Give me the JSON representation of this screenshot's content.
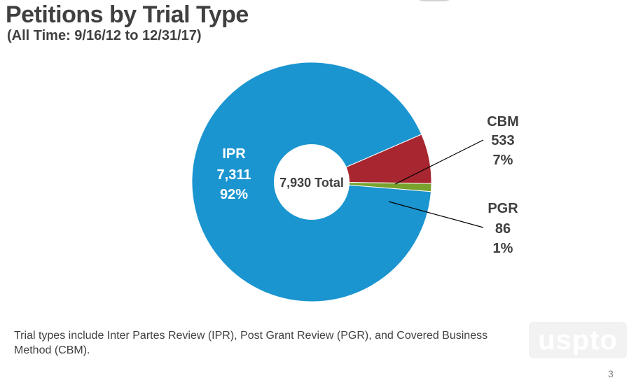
{
  "slide": {
    "title": "Petitions by Trial Type",
    "subtitle": "(All Time: 9/16/12 to 12/31/17)",
    "footnote": "Trial types include Inter Partes Review (IPR), Post Grant Review (PGR), and Covered Business Method (CBM).",
    "logo_text": "uspto",
    "page_number": "3"
  },
  "chart_data": {
    "type": "pie",
    "variant": "donut",
    "center_label": "7,930 Total",
    "total": 7930,
    "slices": [
      {
        "label": "IPR",
        "value": 7311,
        "value_label": "7,311",
        "percent_label": "92%",
        "color": "#1b95d0"
      },
      {
        "label": "CBM",
        "value": 533,
        "value_label": "533",
        "percent_label": "7%",
        "color": "#a8262f"
      },
      {
        "label": "PGR",
        "value": 86,
        "value_label": "86",
        "percent_label": "1%",
        "color": "#77a22d"
      }
    ]
  }
}
